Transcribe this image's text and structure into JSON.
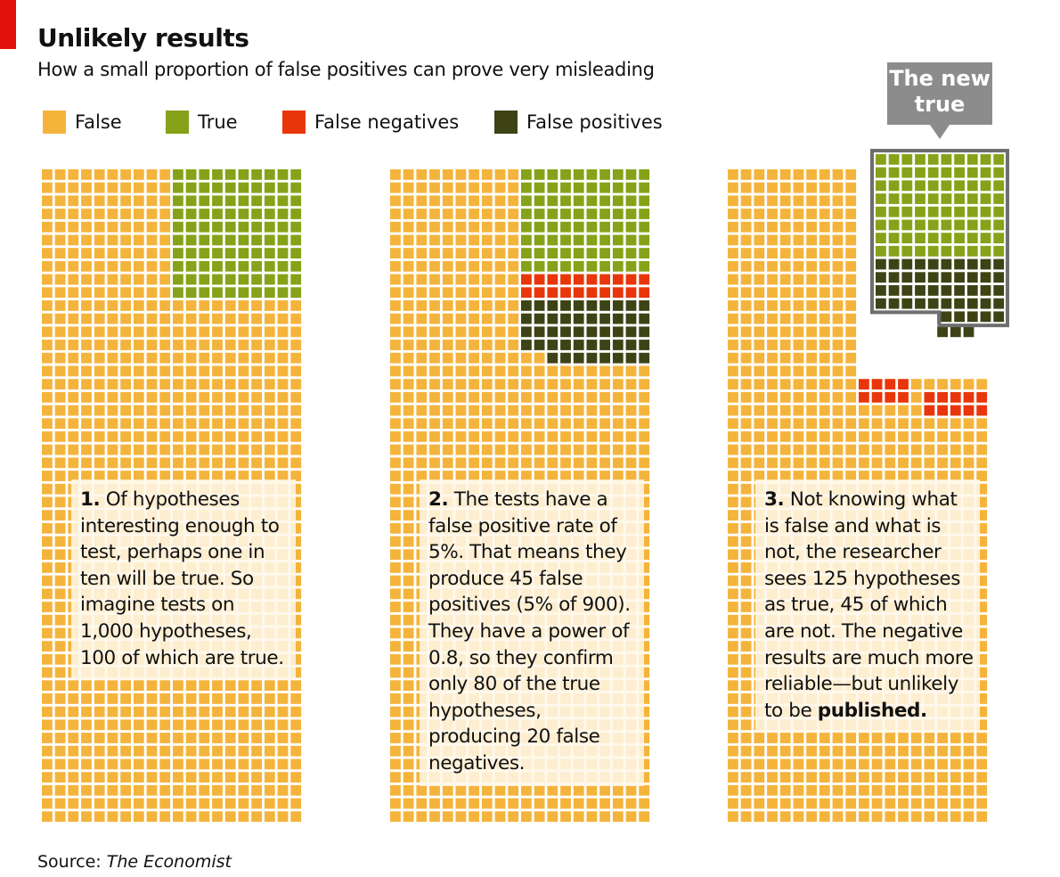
{
  "title": "Unlikely results",
  "subtitle": "How a small proportion of false positives can prove very misleading",
  "legend": [
    {
      "label": "False",
      "color": "#f4b43c"
    },
    {
      "label": "True",
      "color": "#86a219"
    },
    {
      "label": "False negatives",
      "color": "#e8360a"
    },
    {
      "label": "False positives",
      "color": "#3e4316"
    }
  ],
  "callout": {
    "line1": "The new",
    "line2": "true"
  },
  "panels": [
    {
      "number": "1.",
      "text": "Of hypotheses interesting enough to test, perhaps one in ten will be true. So imagine tests on 1,000 hypotheses, 100 of which are true."
    },
    {
      "number": "2.",
      "text": "The tests have a false positive rate of 5%. That means they produce 45 false positives (5% of 900). They have a power of 0.8, so they confirm only 80 of the true hypotheses, producing 20 false negatives."
    },
    {
      "number": "3.",
      "text": "Not knowing what is false and what is not, the researcher sees 125 hypotheses as true, 45 of which are not. The negative results are much more reliable—but unlikely to be",
      "emphasis": "published."
    }
  ],
  "source": {
    "label": "Source:",
    "name": "The Economist"
  },
  "colors": {
    "false": "#f4b43c",
    "true": "#86a219",
    "false_negative": "#e8360a",
    "false_positive": "#3e4316",
    "note_bg": "#fff7e9",
    "callout": "#8c8c8c"
  },
  "chart_data": [
    {
      "type": "waffle",
      "total": 1000,
      "categories": [
        "False",
        "True"
      ],
      "values": [
        900,
        100
      ]
    },
    {
      "type": "waffle",
      "total": 1000,
      "categories": [
        "False",
        "True",
        "False negatives",
        "False positives"
      ],
      "values": [
        855,
        80,
        20,
        45
      ]
    },
    {
      "type": "waffle",
      "total": 1000,
      "categories": [
        "False",
        "True",
        "False negatives",
        "False positives"
      ],
      "values": [
        855,
        80,
        20,
        45
      ],
      "annotation": "The new true",
      "annotated_count": 125
    }
  ]
}
